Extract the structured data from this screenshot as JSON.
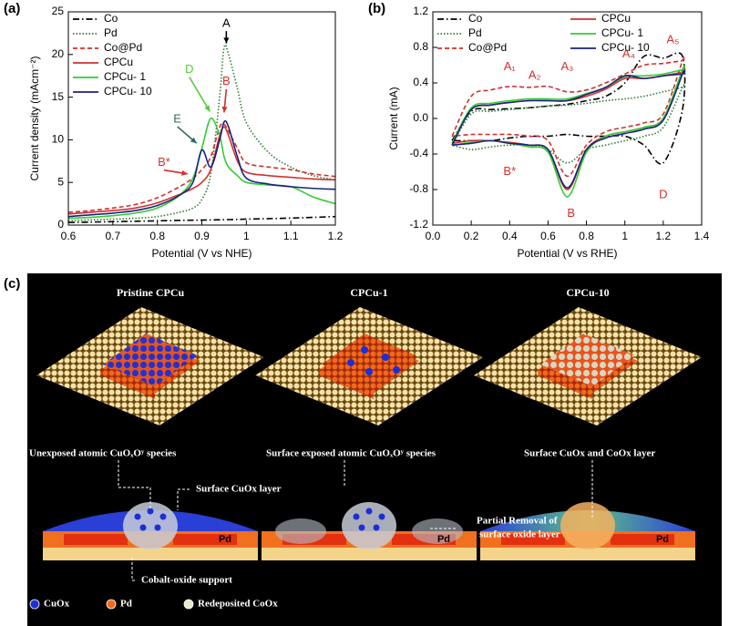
{
  "chart_data": [
    {
      "type": "line",
      "panel_label": "(a)",
      "xlabel": "Potential (V vs NHE)",
      "ylabel": "Current density (mAcm⁻²)",
      "xlim": [
        0.6,
        1.2
      ],
      "xticks": [
        0.6,
        0.7,
        0.8,
        0.9,
        1.0,
        1.1,
        1.2
      ],
      "ylim": [
        0,
        25
      ],
      "yticks": [
        0,
        5,
        10,
        15,
        20,
        25
      ],
      "x": [
        0.6,
        0.65,
        0.7,
        0.75,
        0.8,
        0.85,
        0.88,
        0.9,
        0.92,
        0.94,
        0.95,
        0.96,
        0.98,
        1.0,
        1.05,
        1.1,
        1.15,
        1.2
      ],
      "series": [
        {
          "name": "Co",
          "color": "#000000",
          "style": "dash-dot",
          "values": [
            0.3,
            0.35,
            0.4,
            0.45,
            0.5,
            0.55,
            0.57,
            0.58,
            0.6,
            0.62,
            0.63,
            0.64,
            0.66,
            0.7,
            0.75,
            0.82,
            0.9,
            1.0
          ]
        },
        {
          "name": "Pd",
          "color": "#2e7d32",
          "style": "dotted",
          "values": [
            0.5,
            0.6,
            0.7,
            0.8,
            1.0,
            1.5,
            2.0,
            3.0,
            6.0,
            15,
            20.8,
            20,
            16,
            12,
            8.5,
            6.8,
            5.8,
            5.3
          ]
        },
        {
          "name": "Co@Pd",
          "color": "#d32f2f",
          "style": "dashed",
          "values": [
            1.5,
            1.7,
            2.0,
            2.4,
            3.2,
            4.5,
            5.5,
            6.5,
            8,
            11.5,
            11.8,
            11,
            9,
            7.3,
            6.8,
            6.5,
            6.0,
            5.7
          ]
        },
        {
          "name": "CPCu",
          "color": "#d32f2f",
          "style": "solid",
          "values": [
            1.3,
            1.5,
            1.7,
            2.0,
            2.6,
            3.6,
            4.3,
            5.0,
            6.5,
            10.5,
            11.5,
            10.5,
            7.5,
            6.2,
            5.8,
            5.6,
            5.4,
            5.3
          ]
        },
        {
          "name": "CPCu- 1",
          "color": "#33cc33",
          "style": "solid",
          "values": [
            0.8,
            0.9,
            1.1,
            1.4,
            2.0,
            3.5,
            5.5,
            9.0,
            12.5,
            10.5,
            8.0,
            6.8,
            5.8,
            5.0,
            4.7,
            4.5,
            3.3,
            2.5
          ]
        },
        {
          "name": "CPCu- 10",
          "color": "#1a237e",
          "style": "solid",
          "values": [
            1.0,
            1.2,
            1.4,
            1.7,
            2.3,
            3.5,
            5.0,
            8.8,
            6.8,
            10,
            12.1,
            11.5,
            8,
            5.5,
            4.8,
            4.5,
            4.3,
            4.2
          ]
        }
      ],
      "legend": "upper left",
      "annotations": [
        {
          "text": "A",
          "color": "#000000"
        },
        {
          "text": "B",
          "color": "#d32f2f"
        },
        {
          "text": "D",
          "color": "#55cc33"
        },
        {
          "text": "E",
          "color": "#2e6b5e"
        },
        {
          "text": "B*",
          "color": "#d32f2f"
        }
      ]
    },
    {
      "type": "line",
      "panel_label": "(b)",
      "xlabel": "Potential (V vs RHE)",
      "ylabel": "Current (mA)",
      "xlim": [
        0,
        1.4
      ],
      "xticks": [
        {
          "value": 0,
          "label": "0.0"
        },
        0.2,
        0.4,
        0.6,
        0.8,
        1.0,
        1.2,
        1.4
      ],
      "ylim": [
        -1.2,
        1.2
      ],
      "yticks": [
        -1.2,
        -0.8,
        -0.4,
        {
          "value": 0,
          "label": "0.0"
        },
        0.4,
        0.8,
        1.2
      ],
      "x": [
        0.1,
        0.2,
        0.3,
        0.4,
        0.5,
        0.6,
        0.7,
        0.8,
        0.9,
        1.0,
        1.1,
        1.2,
        1.3,
        1.3,
        1.2,
        1.1,
        1.0,
        0.9,
        0.8,
        0.7,
        0.6,
        0.5,
        0.4,
        0.3,
        0.2,
        0.1
      ],
      "series": [
        {
          "name": "Co",
          "color": "#000000",
          "style": "dash-dot",
          "values": [
            -0.25,
            0.08,
            0.1,
            0.11,
            0.12,
            0.14,
            0.16,
            0.2,
            0.25,
            0.4,
            0.7,
            0.68,
            0.7,
            0.1,
            -0.5,
            -0.3,
            -0.2,
            -0.2,
            -0.2,
            -0.18,
            -0.2,
            -0.2,
            -0.22,
            -0.25,
            -0.25,
            -0.25
          ]
        },
        {
          "name": "Pd",
          "color": "#2e7d32",
          "style": "dotted",
          "values": [
            -0.3,
            0.05,
            0.08,
            0.1,
            0.12,
            0.14,
            0.15,
            0.17,
            0.2,
            0.22,
            0.25,
            0.3,
            0.35,
            0.35,
            -0.1,
            -0.2,
            -0.25,
            -0.3,
            -0.35,
            -0.5,
            -0.35,
            -0.3,
            -0.3,
            -0.32,
            -0.35,
            -0.3
          ]
        },
        {
          "name": "Co@Pd",
          "color": "#d32f2f",
          "style": "dashed",
          "values": [
            -0.2,
            0.25,
            0.32,
            0.36,
            0.35,
            0.36,
            0.3,
            0.32,
            0.4,
            0.5,
            0.6,
            0.62,
            0.65,
            0.65,
            0.05,
            -0.05,
            -0.1,
            -0.15,
            -0.3,
            -0.65,
            -0.25,
            -0.2,
            -0.18,
            -0.18,
            -0.18,
            -0.2
          ]
        },
        {
          "name": "CPCu",
          "color": "#d32f2f",
          "style": "solid",
          "values": [
            -0.28,
            0.1,
            0.15,
            0.18,
            0.2,
            0.2,
            0.2,
            0.25,
            0.33,
            0.45,
            0.45,
            0.48,
            0.52,
            0.52,
            0,
            -0.1,
            -0.15,
            -0.2,
            -0.35,
            -0.8,
            -0.35,
            -0.3,
            -0.27,
            -0.25,
            -0.25,
            -0.28
          ]
        },
        {
          "name": "CPCu- 1",
          "color": "#33cc33",
          "style": "solid",
          "values": [
            -0.28,
            0.12,
            0.17,
            0.2,
            0.22,
            0.22,
            0.22,
            0.28,
            0.35,
            0.47,
            0.48,
            0.5,
            0.55,
            0.55,
            0,
            -0.1,
            -0.15,
            -0.2,
            -0.38,
            -0.88,
            -0.38,
            -0.32,
            -0.28,
            -0.25,
            -0.27,
            -0.3
          ]
        },
        {
          "name": "CPCu- 10",
          "color": "#1a237e",
          "style": "solid",
          "values": [
            -0.3,
            0.1,
            0.15,
            0.18,
            0.2,
            0.2,
            0.2,
            0.27,
            0.35,
            0.48,
            0.45,
            0.48,
            0.5,
            0.5,
            -0.02,
            -0.12,
            -0.17,
            -0.22,
            -0.35,
            -0.78,
            -0.35,
            -0.3,
            -0.28,
            -0.25,
            -0.28,
            -0.3
          ]
        }
      ],
      "legend": "upper left two columns",
      "annotations": [
        {
          "text": "A₁",
          "color": "#d32f2f"
        },
        {
          "text": "A₂",
          "color": "#d32f2f"
        },
        {
          "text": "A₃",
          "color": "#d32f2f"
        },
        {
          "text": "A₄",
          "color": "#d32f2f"
        },
        {
          "text": "A₅",
          "color": "#d32f2f"
        },
        {
          "text": "B*",
          "color": "#d32f2f"
        },
        {
          "text": "B",
          "color": "#d32f2f"
        },
        {
          "text": "D",
          "color": "#d32f2f"
        }
      ]
    }
  ],
  "illustration": {
    "panel_label": "(c)",
    "titles": [
      "Pristine CPCu",
      "CPCu-1",
      "CPCu-10"
    ],
    "annotations": [
      "Unexposed atomic CuOₓOʸ species",
      "Surface CuOx layer",
      "Cobalt-oxide support",
      "Surface exposed atomic CuOₓOʸ species",
      "Partial Removal of",
      "surface oxide layer",
      "Surface CuOx and CoOx layer"
    ],
    "pd_labels": [
      "Pd",
      "Pd",
      "Pd"
    ],
    "legend": [
      "CuOx",
      "Pd",
      "Redeposited CoOx"
    ]
  }
}
